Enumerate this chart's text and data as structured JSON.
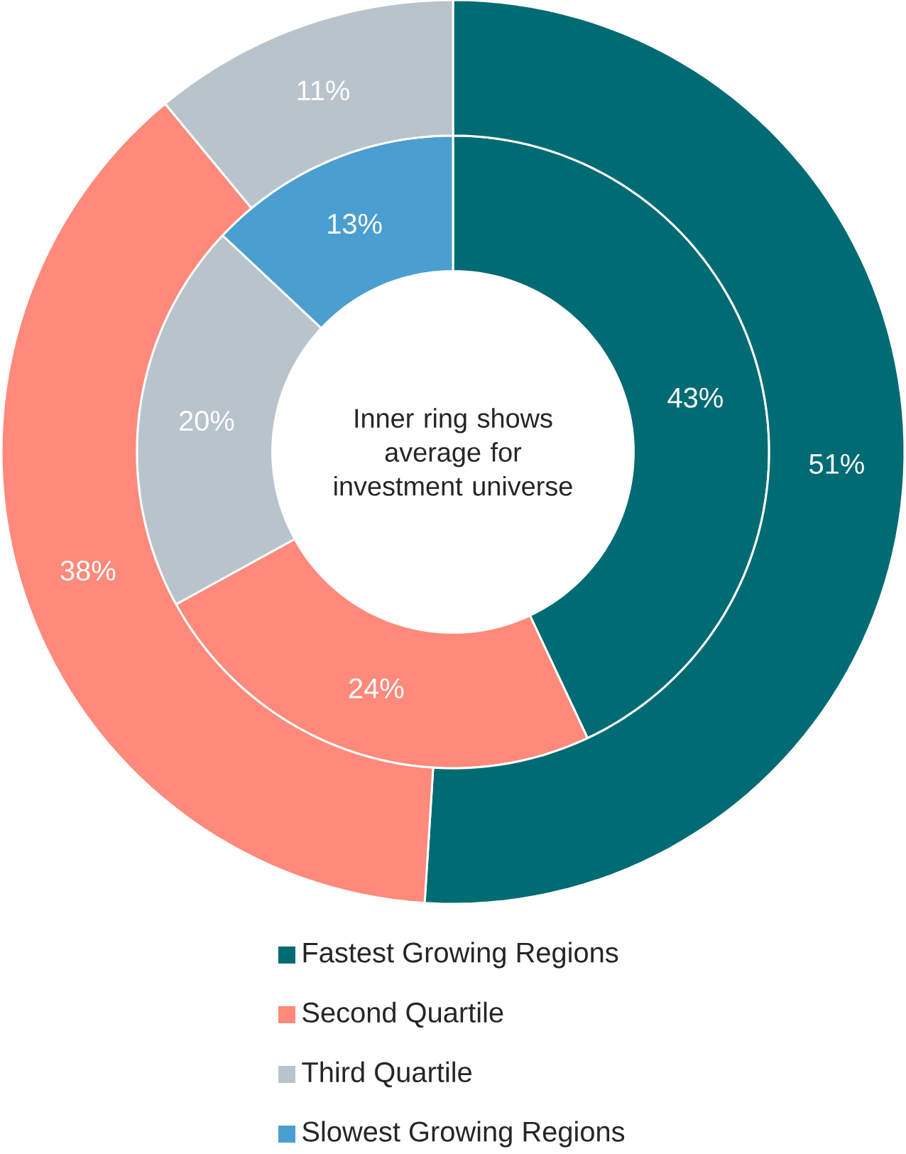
{
  "chart_data": {
    "type": "donut",
    "categories": [
      "Fastest Growing Regions",
      "Second Quartile",
      "Third Quartile",
      "Slowest Growing Regions"
    ],
    "colors": [
      "#006b73",
      "#ff897a",
      "#b9c3cb",
      "#4b9fd0"
    ],
    "series": [
      {
        "values": [
          43,
          24,
          20,
          13
        ],
        "value_labels": [
          "43%",
          "24%",
          "20%",
          "13%"
        ]
      },
      {
        "values": [
          51,
          38,
          11,
          null
        ],
        "value_labels": [
          "51%",
          "38%",
          "11%",
          null
        ]
      }
    ],
    "annotations": [
      "Inner ring shows average for investment universe"
    ],
    "legend": "bottom"
  }
}
